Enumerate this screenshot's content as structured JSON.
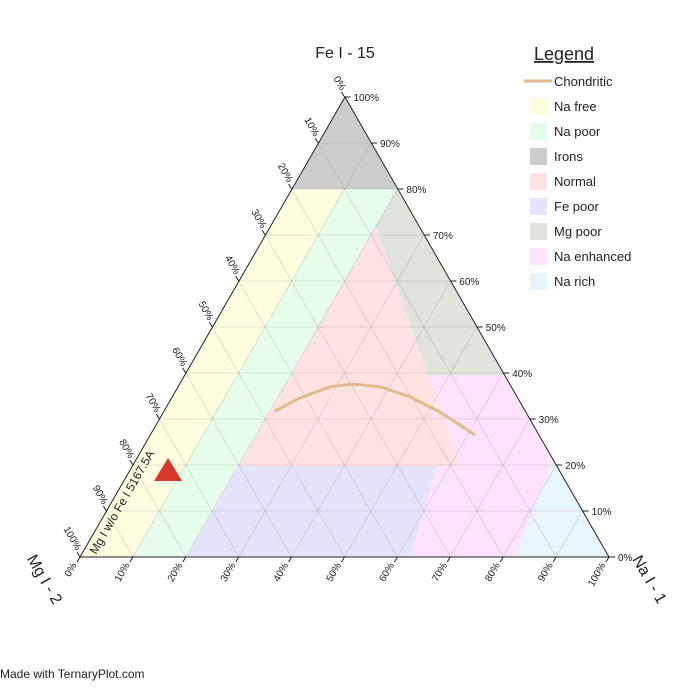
{
  "chart_data": {
    "type": "ternary",
    "axes": {
      "top": {
        "title": "Fe I - 15"
      },
      "right": {
        "title": "Na I - 1"
      },
      "left": {
        "title": "Mg I - 2"
      }
    },
    "feticks": [
      {
        "value": 0,
        "label": "0%"
      },
      {
        "value": 10,
        "label": "10%"
      },
      {
        "value": 20,
        "label": "20%"
      },
      {
        "value": 30,
        "label": "30%"
      },
      {
        "value": 40,
        "label": "40%"
      },
      {
        "value": 50,
        "label": "50%"
      },
      {
        "value": 60,
        "label": "60%"
      },
      {
        "value": 70,
        "label": "70%"
      },
      {
        "value": 80,
        "label": "80%"
      },
      {
        "value": 90,
        "label": "90%"
      },
      {
        "value": 100,
        "label": "100%"
      }
    ],
    "naticks": [
      {
        "value": 0,
        "label": "0%"
      },
      {
        "value": 10,
        "label": "10%"
      },
      {
        "value": 20,
        "label": "20%"
      },
      {
        "value": 30,
        "label": "30%"
      },
      {
        "value": 40,
        "label": "40%"
      },
      {
        "value": 50,
        "label": "50%"
      },
      {
        "value": 60,
        "label": "60%"
      },
      {
        "value": 70,
        "label": "70%"
      },
      {
        "value": 80,
        "label": "80%"
      },
      {
        "value": 90,
        "label": "90%"
      },
      {
        "value": 100,
        "label": "100%"
      }
    ],
    "mgticks": [
      {
        "value": 0,
        "label": "0%"
      },
      {
        "value": 10,
        "label": "10%"
      },
      {
        "value": 20,
        "label": "20%"
      },
      {
        "value": 30,
        "label": "30%"
      },
      {
        "value": 40,
        "label": "40%"
      },
      {
        "value": 50,
        "label": "50%"
      },
      {
        "value": 60,
        "label": "60%"
      },
      {
        "value": 70,
        "label": "70%"
      },
      {
        "value": 80,
        "label": "80%"
      },
      {
        "value": 90,
        "label": "90%"
      },
      {
        "value": 100,
        "label": "100%"
      }
    ],
    "grid": true,
    "legend": {
      "title": "Legend",
      "position": "upper right"
    },
    "series": [
      {
        "name": "Chondritic",
        "color": "#e2ba8f",
        "fe": [
          31.7,
          34.6,
          37.0,
          37.6,
          37.0,
          34.8,
          31.5,
          28.7,
          26.5
        ],
        "na": [
          21.0,
          24.3,
          28.8,
          32.6,
          38.2,
          45.0,
          52.3,
          57.5,
          61.4
        ],
        "mg": [
          47.3,
          41.1,
          34.2,
          29.8,
          24.8,
          20.2,
          16.2,
          13.8,
          12.1
        ]
      }
    ],
    "points": [
      {
        "name": "Mg I w/o Fe I 5167.5A",
        "color": "#d9362b",
        "fe": 18.9,
        "na": 7.2,
        "mg": 73.9
      }
    ],
    "regions": [
      {
        "name": "Na free",
        "color": "#fffde0"
      },
      {
        "name": "Na poor",
        "color": "#e6fdec"
      },
      {
        "name": "Irons",
        "color": "#cccccc"
      },
      {
        "name": "Normal",
        "color": "#ffe2e2"
      },
      {
        "name": "Fe poor",
        "color": "#e6e4fd"
      },
      {
        "name": "Mg poor",
        "color": "#e1e3dd"
      },
      {
        "name": "Na enhanced",
        "color": "#fde3fd"
      },
      {
        "name": "Na rich",
        "color": "#e8f5fb"
      }
    ],
    "footer": "Made with TernaryPlot.com"
  }
}
